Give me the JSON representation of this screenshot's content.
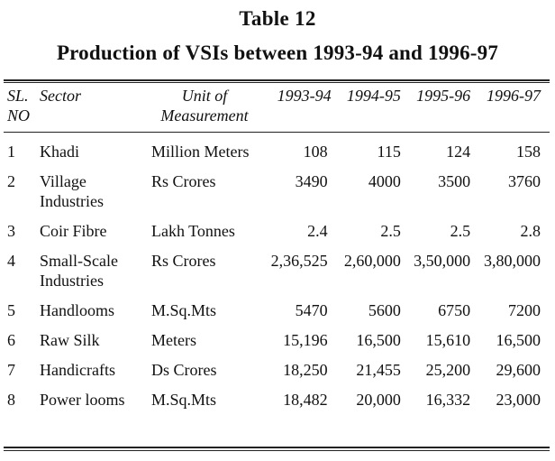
{
  "table": {
    "number": "Table 12",
    "title": "Production of VSIs between 1993-94 and 1996-97",
    "headers": {
      "sl": "SL. NO",
      "sector": "Sector",
      "unit": "Unit of Measurement",
      "y1": "1993-94",
      "y2": "1994-95",
      "y3": "1995-96",
      "y4": "1996-97"
    },
    "rows": [
      {
        "sl": "1",
        "sector": "Khadi",
        "unit": "Million Meters",
        "y1": "108",
        "y2": "115",
        "y3": "124",
        "y4": "158"
      },
      {
        "sl": "2",
        "sector": "Village Industries",
        "unit": "Rs Crores",
        "y1": "3490",
        "y2": "4000",
        "y3": "3500",
        "y4": "3760"
      },
      {
        "sl": "3",
        "sector": "Coir Fibre",
        "unit": "Lakh Tonnes",
        "y1": "2.4",
        "y2": "2.5",
        "y3": "2.5",
        "y4": "2.8"
      },
      {
        "sl": "4",
        "sector": "Small-Scale Industries",
        "unit": "Rs Crores",
        "y1": "2,36,525",
        "y2": "2,60,000",
        "y3": "3,50,000",
        "y4": "3,80,000"
      },
      {
        "sl": "5",
        "sector": "Handlooms",
        "unit": "M.Sq.Mts",
        "y1": "5470",
        "y2": "5600",
        "y3": "6750",
        "y4": "7200"
      },
      {
        "sl": "6",
        "sector": "Raw Silk",
        "unit": "Meters",
        "y1": "15,196",
        "y2": "16,500",
        "y3": "15,610",
        "y4": "16,500"
      },
      {
        "sl": "7",
        "sector": "Handicrafts",
        "unit": "Ds Crores",
        "y1": "18,250",
        "y2": "21,455",
        "y3": "25,200",
        "y4": "29,600"
      },
      {
        "sl": "8",
        "sector": "Power looms",
        "unit": "M.Sq.Mts",
        "y1": "18,482",
        "y2": "20,000",
        "y3": "16,332",
        "y4": "23,000"
      }
    ]
  }
}
